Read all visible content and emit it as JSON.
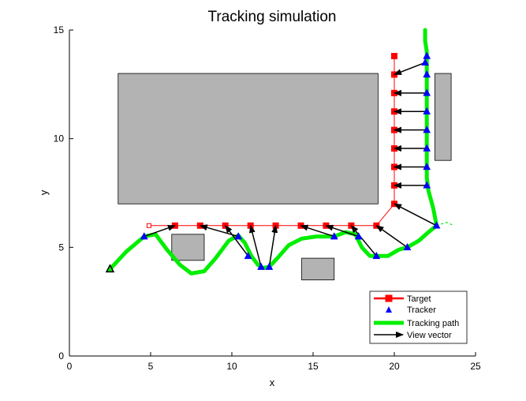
{
  "chart_data": {
    "type": "scatter",
    "title": "Tracking simulation",
    "xlabel": "x",
    "ylabel": "y",
    "xlim": [
      0,
      25
    ],
    "ylim": [
      0,
      15
    ],
    "x_ticks": [
      0,
      5,
      10,
      15,
      20,
      25
    ],
    "y_ticks": [
      0,
      5,
      10,
      15
    ],
    "grid": false,
    "legend_position": "bottom-right",
    "legend": [
      "Target",
      "Tracker",
      "Tracking path",
      "View vector"
    ],
    "colors": {
      "target": "#ff0000",
      "tracker": "#0000ff",
      "tracking_path": "#00ee00",
      "view_vector": "#000000",
      "obstacle_fill": "#b3b3b3"
    },
    "obstacles": [
      {
        "x": [
          3,
          19
        ],
        "y": [
          7,
          13
        ]
      },
      {
        "x": [
          6.3,
          8.3
        ],
        "y": [
          4.4,
          5.6
        ]
      },
      {
        "x": [
          14.3,
          16.3
        ],
        "y": [
          3.5,
          4.5
        ]
      },
      {
        "x": [
          22.5,
          23.5
        ],
        "y": [
          9,
          13
        ]
      }
    ],
    "target": {
      "x": [
        4.9,
        6.5,
        8.05,
        9.6,
        11.15,
        12.7,
        14.25,
        15.8,
        17.35,
        18.9,
        20,
        20,
        20,
        20,
        20,
        20,
        20,
        20,
        20
      ],
      "y": [
        6,
        6,
        6,
        6,
        6,
        6,
        6,
        6,
        6,
        6,
        7,
        7.85,
        8.7,
        9.55,
        10.4,
        11.25,
        12.1,
        12.95,
        13.8
      ]
    },
    "tracker": {
      "x": [
        2.5,
        4.6,
        10.4,
        11,
        11.8,
        12.3,
        16.3,
        17.8,
        18.9,
        20.8,
        22.6,
        22,
        22,
        22,
        22,
        22,
        22,
        22,
        22,
        21.9
      ],
      "y": [
        4,
        5.5,
        5.5,
        4.6,
        4.1,
        4.1,
        5.5,
        5.5,
        4.6,
        5,
        6,
        7.85,
        8.7,
        9.55,
        10.4,
        11.25,
        12.1,
        12.95,
        13.8,
        13.5
      ]
    },
    "tracking_path": {
      "x": [
        2.5,
        3.5,
        4.6,
        5.3,
        6.0,
        6.8,
        7.5,
        8.3,
        9.0,
        9.8,
        10.4,
        10.8,
        11.2,
        11.6,
        11.9,
        12.3,
        12.8,
        13.5,
        14.3,
        15.2,
        16.3,
        17.0,
        17.6,
        18.0,
        18.5,
        18.9,
        19.6,
        20.3,
        20.8,
        21.5,
        22.1,
        22.6,
        22.4,
        22.1,
        22.0,
        22.0,
        22.0,
        22.0,
        22.0,
        22.0,
        22.0,
        22.0,
        21.9,
        21.9
      ],
      "y": [
        4.0,
        4.8,
        5.5,
        5.6,
        4.9,
        4.2,
        3.8,
        3.9,
        4.5,
        5.3,
        5.55,
        5.2,
        4.6,
        4.2,
        4.05,
        4.1,
        4.5,
        5.1,
        5.4,
        5.5,
        5.5,
        5.7,
        5.6,
        5.0,
        4.6,
        4.6,
        4.6,
        4.9,
        5.0,
        5.3,
        5.7,
        6.0,
        6.8,
        7.6,
        8.2,
        9.0,
        10.0,
        11.0,
        12.0,
        13.0,
        13.5,
        14.0,
        14.5,
        15.0
      ]
    },
    "target_extension": {
      "x": [
        22.6,
        23.2,
        23.7
      ],
      "y": [
        6.0,
        6.15,
        6.0
      ]
    },
    "view_vectors": [
      {
        "from": [
          4.6,
          5.5
        ],
        "to": [
          6.5,
          6
        ]
      },
      {
        "from": [
          10.4,
          5.5
        ],
        "to": [
          8.05,
          6
        ]
      },
      {
        "from": [
          11,
          4.6
        ],
        "to": [
          9.6,
          6
        ]
      },
      {
        "from": [
          11.8,
          4.1
        ],
        "to": [
          11.15,
          6
        ]
      },
      {
        "from": [
          12.3,
          4.1
        ],
        "to": [
          12.7,
          6
        ]
      },
      {
        "from": [
          16.3,
          5.5
        ],
        "to": [
          14.25,
          6
        ]
      },
      {
        "from": [
          17.8,
          5.5
        ],
        "to": [
          15.8,
          6
        ]
      },
      {
        "from": [
          18.9,
          4.6
        ],
        "to": [
          17.35,
          6
        ]
      },
      {
        "from": [
          20.8,
          5
        ],
        "to": [
          18.9,
          6
        ]
      },
      {
        "from": [
          22.6,
          6
        ],
        "to": [
          20,
          7
        ]
      },
      {
        "from": [
          22,
          7.85
        ],
        "to": [
          20,
          7.85
        ]
      },
      {
        "from": [
          22,
          8.7
        ],
        "to": [
          20,
          8.7
        ]
      },
      {
        "from": [
          22,
          9.55
        ],
        "to": [
          20,
          9.55
        ]
      },
      {
        "from": [
          22,
          10.4
        ],
        "to": [
          20,
          10.4
        ]
      },
      {
        "from": [
          22,
          11.25
        ],
        "to": [
          20,
          11.25
        ]
      },
      {
        "from": [
          22,
          12.1
        ],
        "to": [
          20,
          12.1
        ]
      },
      {
        "from": [
          21.9,
          13.5
        ],
        "to": [
          20,
          12.95
        ]
      }
    ]
  }
}
